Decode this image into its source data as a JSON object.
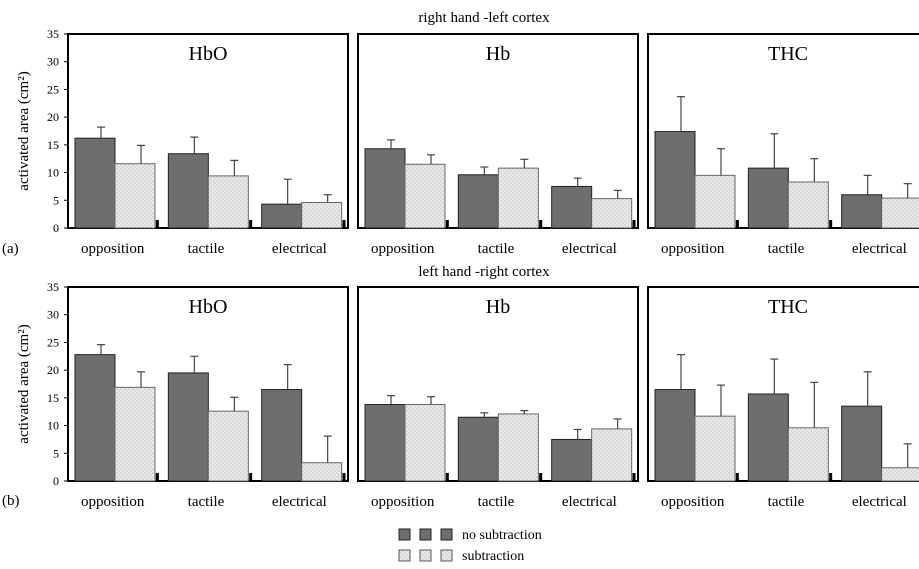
{
  "figure": {
    "legend": {
      "items": [
        {
          "label": "no subtraction",
          "color": "#6e6e6e"
        },
        {
          "label": "subtraction",
          "color": "#e6e6e6"
        }
      ],
      "placement": "bottom-center"
    }
  },
  "chart_data": [
    {
      "type": "bar",
      "row": "a",
      "row_title": "right hand -left cortex",
      "panel_letter": "(a)",
      "title": "HbO",
      "ylabel": "activated area (cm²)",
      "ylim": [
        0,
        35
      ],
      "yticks": [
        "0",
        "5",
        "10",
        "15",
        "20",
        "25",
        "30",
        "35"
      ],
      "categories": [
        "opposition",
        "tactile",
        "electrical"
      ],
      "series": [
        {
          "name": "no subtraction",
          "values": [
            16.2,
            13.4,
            4.3
          ],
          "errors": [
            2.0,
            3.0,
            4.5
          ]
        },
        {
          "name": "subtraction",
          "values": [
            11.6,
            9.4,
            4.6
          ],
          "errors": [
            3.3,
            2.8,
            1.4
          ]
        }
      ]
    },
    {
      "type": "bar",
      "row": "a",
      "title": "Hb",
      "ylim": [
        0,
        35
      ],
      "categories": [
        "opposition",
        "tactile",
        "electrical"
      ],
      "series": [
        {
          "name": "no subtraction",
          "values": [
            14.3,
            9.6,
            7.5
          ],
          "errors": [
            1.6,
            1.4,
            1.5
          ]
        },
        {
          "name": "subtraction",
          "values": [
            11.5,
            10.8,
            5.3
          ],
          "errors": [
            1.7,
            1.6,
            1.5
          ]
        }
      ]
    },
    {
      "type": "bar",
      "row": "a",
      "title": "THC",
      "ylim": [
        0,
        35
      ],
      "categories": [
        "opposition",
        "tactile",
        "electrical"
      ],
      "series": [
        {
          "name": "no subtraction",
          "values": [
            17.4,
            10.8,
            6.0
          ],
          "errors": [
            6.3,
            6.2,
            3.5
          ]
        },
        {
          "name": "subtraction",
          "values": [
            9.5,
            8.3,
            5.4
          ],
          "errors": [
            4.8,
            4.2,
            2.6
          ]
        }
      ]
    },
    {
      "type": "bar",
      "row": "b",
      "row_title": "left hand -right cortex",
      "panel_letter": "(b)",
      "title": "HbO",
      "ylabel": "activated area (cm²)",
      "ylim": [
        0,
        35
      ],
      "yticks": [
        "0",
        "5",
        "10",
        "15",
        "20",
        "25",
        "30",
        "35"
      ],
      "categories": [
        "opposition",
        "tactile",
        "electrical"
      ],
      "series": [
        {
          "name": "no subtraction",
          "values": [
            22.8,
            19.5,
            16.5
          ],
          "errors": [
            1.8,
            3.0,
            4.5
          ]
        },
        {
          "name": "subtraction",
          "values": [
            16.9,
            12.6,
            3.3
          ],
          "errors": [
            2.8,
            2.5,
            4.8
          ]
        }
      ]
    },
    {
      "type": "bar",
      "row": "b",
      "title": "Hb",
      "ylim": [
        0,
        35
      ],
      "categories": [
        "opposition",
        "tactile",
        "electrical"
      ],
      "series": [
        {
          "name": "no subtraction",
          "values": [
            13.8,
            11.5,
            7.5
          ],
          "errors": [
            1.6,
            0.8,
            1.8
          ]
        },
        {
          "name": "subtraction",
          "values": [
            13.8,
            12.1,
            9.4
          ],
          "errors": [
            1.4,
            0.6,
            1.8
          ]
        }
      ]
    },
    {
      "type": "bar",
      "row": "b",
      "title": "THC",
      "ylim": [
        0,
        35
      ],
      "categories": [
        "opposition",
        "tactile",
        "electrical"
      ],
      "series": [
        {
          "name": "no subtraction",
          "values": [
            16.5,
            15.7,
            13.5
          ],
          "errors": [
            6.3,
            6.3,
            6.2
          ]
        },
        {
          "name": "subtraction",
          "values": [
            11.7,
            9.6,
            2.4
          ],
          "errors": [
            5.6,
            8.2,
            4.3
          ]
        }
      ]
    }
  ]
}
